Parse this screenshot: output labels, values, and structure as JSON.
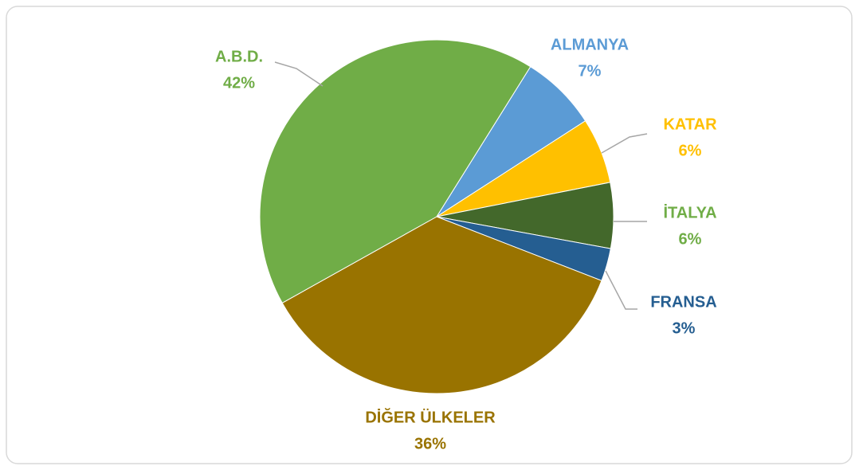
{
  "chart_data": {
    "type": "pie",
    "categories": [
      "ALMANYA",
      "KATAR",
      "İTALYA",
      "FRANSA",
      "DİĞER ÜLKELER",
      "A.B.D."
    ],
    "values": [
      7,
      6,
      6,
      3,
      36,
      42
    ],
    "value_labels": [
      "7%",
      "6%",
      "6%",
      "3%",
      "36%",
      "42%"
    ],
    "colors": [
      "#5b9bd5",
      "#ffc000",
      "#43682b",
      "#255e91",
      "#997300",
      "#70ad47"
    ],
    "label_colors": [
      "#5b9bd5",
      "#ffc000",
      "#70ad47",
      "#255e91",
      "#997300",
      "#70ad47"
    ]
  }
}
